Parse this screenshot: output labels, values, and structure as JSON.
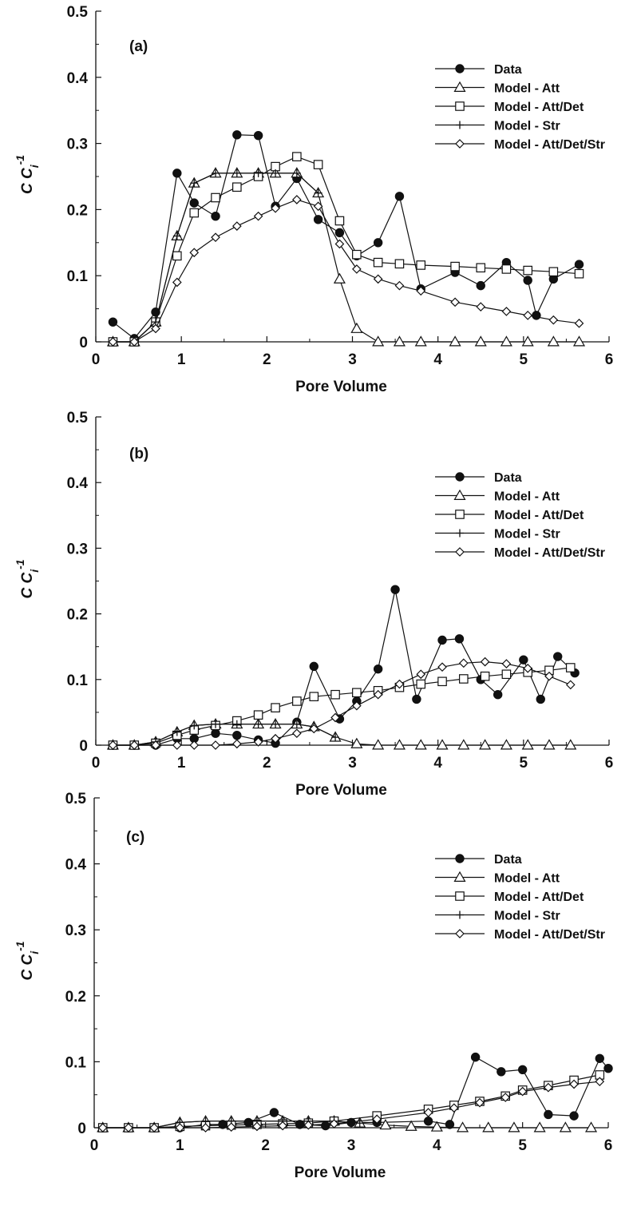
{
  "chart_data": [
    {
      "type": "line",
      "panel_label": "(a)",
      "xlabel": "Pore Volume",
      "ylabel": {
        "main": "C C",
        "sub": "i",
        "sup": "-1"
      },
      "xlim": [
        0,
        6
      ],
      "ylim": [
        0,
        0.5
      ],
      "xticks": [
        0,
        1,
        2,
        3,
        4,
        5,
        6
      ],
      "yticks": [
        0,
        0.1,
        0.2,
        0.3,
        0.4,
        0.5
      ],
      "ytick_labels": [
        "0",
        "0.1",
        "0.2",
        "0.3",
        "0.4",
        "0.5"
      ],
      "legend_position": "top-right",
      "series": [
        {
          "name": "Data",
          "marker": "filled-circle",
          "x": [
            0.2,
            0.45,
            0.7,
            0.95,
            1.15,
            1.4,
            1.65,
            1.9,
            2.1,
            2.35,
            2.6,
            2.85,
            3.05,
            3.3,
            3.55,
            3.8,
            4.2,
            4.5,
            4.8,
            5.05,
            5.15,
            5.35,
            5.65
          ],
          "y": [
            0.03,
            0.005,
            0.045,
            0.255,
            0.21,
            0.19,
            0.313,
            0.312,
            0.205,
            0.247,
            0.185,
            0.165,
            0.13,
            0.15,
            0.22,
            0.08,
            0.105,
            0.085,
            0.12,
            0.093,
            0.04,
            0.095,
            0.117
          ]
        },
        {
          "name": "Model - Att",
          "marker": "open-triangle",
          "x": [
            0.2,
            0.45,
            0.7,
            0.95,
            1.15,
            1.4,
            1.65,
            1.9,
            2.1,
            2.35,
            2.6,
            2.85,
            3.05,
            3.3,
            3.55,
            3.8,
            4.2,
            4.5,
            4.8,
            5.05,
            5.35,
            5.65
          ],
          "y": [
            0,
            0,
            0.03,
            0.16,
            0.24,
            0.255,
            0.255,
            0.255,
            0.255,
            0.255,
            0.225,
            0.095,
            0.02,
            0,
            0,
            0,
            0,
            0,
            0,
            0,
            0,
            0
          ]
        },
        {
          "name": "Model - Att/Det",
          "marker": "open-square",
          "x": [
            0.2,
            0.45,
            0.7,
            0.95,
            1.15,
            1.4,
            1.65,
            1.9,
            2.1,
            2.35,
            2.6,
            2.85,
            3.05,
            3.3,
            3.55,
            3.8,
            4.2,
            4.5,
            4.8,
            5.05,
            5.35,
            5.65
          ],
          "y": [
            0,
            0,
            0.03,
            0.13,
            0.195,
            0.218,
            0.234,
            0.25,
            0.265,
            0.28,
            0.268,
            0.183,
            0.132,
            0.12,
            0.118,
            0.116,
            0.114,
            0.112,
            0.11,
            0.108,
            0.106,
            0.103
          ]
        },
        {
          "name": "Model - Str",
          "marker": "plus",
          "x": [
            0.2,
            0.45,
            0.7,
            0.95,
            1.15,
            1.4,
            1.65,
            1.9,
            2.1,
            2.35,
            2.6
          ],
          "y": [
            0,
            0,
            0.03,
            0.16,
            0.24,
            0.255,
            0.255,
            0.255,
            0.255,
            0.255,
            0.225
          ]
        },
        {
          "name": "Model - Att/Det/Str",
          "marker": "open-diamond",
          "x": [
            0.2,
            0.45,
            0.7,
            0.95,
            1.15,
            1.4,
            1.65,
            1.9,
            2.1,
            2.35,
            2.6,
            2.85,
            3.05,
            3.3,
            3.55,
            3.8,
            4.2,
            4.5,
            4.8,
            5.05,
            5.35,
            5.65
          ],
          "y": [
            0,
            0,
            0.02,
            0.09,
            0.135,
            0.158,
            0.175,
            0.19,
            0.202,
            0.215,
            0.205,
            0.148,
            0.11,
            0.095,
            0.085,
            0.077,
            0.06,
            0.053,
            0.046,
            0.04,
            0.033,
            0.028
          ]
        }
      ]
    },
    {
      "type": "line",
      "panel_label": "(b)",
      "xlabel": "Pore Volume",
      "ylabel": {
        "main": "C C",
        "sub": "i",
        "sup": "-1"
      },
      "xlim": [
        0,
        6
      ],
      "ylim": [
        0,
        0.5
      ],
      "xticks": [
        0,
        1,
        2,
        3,
        4,
        5,
        6
      ],
      "yticks": [
        0,
        0.1,
        0.2,
        0.3,
        0.4,
        0.5
      ],
      "ytick_labels": [
        "0",
        "0.1",
        "0.2",
        "0.3",
        "0.4",
        "0.5"
      ],
      "legend_position": "top-right",
      "series": [
        {
          "name": "Data",
          "marker": "filled-circle",
          "x": [
            0.2,
            0.45,
            0.7,
            0.95,
            1.15,
            1.4,
            1.65,
            1.9,
            2.1,
            2.35,
            2.55,
            2.85,
            3.05,
            3.3,
            3.5,
            3.75,
            4.05,
            4.25,
            4.5,
            4.7,
            5.0,
            5.2,
            5.4,
            5.6
          ],
          "y": [
            0,
            0,
            0,
            0.01,
            0.01,
            0.018,
            0.015,
            0.008,
            0.003,
            0.035,
            0.12,
            0.04,
            0.067,
            0.116,
            0.237,
            0.07,
            0.16,
            0.162,
            0.1,
            0.077,
            0.13,
            0.07,
            0.135,
            0.11
          ]
        },
        {
          "name": "Model - Att",
          "marker": "open-triangle",
          "x": [
            0.2,
            0.45,
            0.7,
            0.95,
            1.15,
            1.4,
            1.65,
            1.9,
            2.1,
            2.35,
            2.55,
            2.8,
            3.05,
            3.3,
            3.55,
            3.8,
            4.05,
            4.3,
            4.55,
            4.8,
            5.05,
            5.3,
            5.55
          ],
          "y": [
            0,
            0,
            0.005,
            0.02,
            0.03,
            0.032,
            0.032,
            0.032,
            0.032,
            0.032,
            0.028,
            0.012,
            0.002,
            0,
            0,
            0,
            0,
            0,
            0,
            0,
            0,
            0,
            0
          ]
        },
        {
          "name": "Model - Att/Det",
          "marker": "open-square",
          "x": [
            0.2,
            0.45,
            0.7,
            0.95,
            1.15,
            1.4,
            1.65,
            1.9,
            2.1,
            2.35,
            2.55,
            2.8,
            3.05,
            3.3,
            3.55,
            3.8,
            4.05,
            4.3,
            4.55,
            4.8,
            5.05,
            5.3,
            5.55
          ],
          "y": [
            0,
            0,
            0.003,
            0.015,
            0.023,
            0.03,
            0.037,
            0.046,
            0.057,
            0.067,
            0.074,
            0.077,
            0.08,
            0.083,
            0.088,
            0.093,
            0.097,
            0.101,
            0.105,
            0.108,
            0.111,
            0.114,
            0.118
          ]
        },
        {
          "name": "Model - Str",
          "marker": "plus",
          "x": [
            0.2,
            0.45,
            0.7,
            0.95,
            1.15,
            1.4,
            1.65,
            1.9,
            2.1,
            2.35,
            2.55,
            2.8
          ],
          "y": [
            0,
            0,
            0.005,
            0.02,
            0.03,
            0.032,
            0.032,
            0.032,
            0.032,
            0.032,
            0.028,
            0.012
          ]
        },
        {
          "name": "Model - Att/Det/Str",
          "marker": "open-diamond",
          "x": [
            0.2,
            0.45,
            0.7,
            0.95,
            1.15,
            1.4,
            1.65,
            1.9,
            2.1,
            2.35,
            2.55,
            2.8,
            3.05,
            3.3,
            3.55,
            3.8,
            4.05,
            4.3,
            4.55,
            4.8,
            5.05,
            5.3,
            5.55
          ],
          "y": [
            0,
            0,
            0,
            0,
            0,
            0,
            0.002,
            0.005,
            0.01,
            0.018,
            0.025,
            0.042,
            0.06,
            0.077,
            0.093,
            0.108,
            0.119,
            0.125,
            0.127,
            0.124,
            0.117,
            0.105,
            0.092
          ]
        }
      ]
    },
    {
      "type": "line",
      "panel_label": "(c)",
      "xlabel": "Pore Volume",
      "ylabel": {
        "main": "C C",
        "sub": "i",
        "sup": "-1"
      },
      "xlim": [
        0,
        6
      ],
      "ylim": [
        0,
        0.5
      ],
      "xticks": [
        0,
        1,
        2,
        3,
        4,
        5,
        6
      ],
      "yticks": [
        0,
        0.1,
        0.2,
        0.3,
        0.4,
        0.5
      ],
      "ytick_labels": [
        "0",
        "0.1",
        "0.2",
        "0.3",
        "0.4",
        "0.5"
      ],
      "legend_position": "top-right",
      "series": [
        {
          "name": "Data",
          "marker": "filled-circle",
          "x": [
            0.1,
            0.4,
            0.7,
            1.0,
            1.3,
            1.5,
            1.8,
            2.1,
            2.4,
            2.7,
            3.0,
            3.3,
            3.9,
            4.15,
            4.45,
            4.75,
            5.0,
            5.3,
            5.6,
            5.9,
            6.0
          ],
          "y": [
            0,
            0,
            0,
            0,
            0.005,
            0.005,
            0.008,
            0.023,
            0.005,
            0.003,
            0.008,
            0.008,
            0.01,
            0.005,
            0.107,
            0.085,
            0.088,
            0.02,
            0.018,
            0.105,
            0.09
          ]
        },
        {
          "name": "Model - Att",
          "marker": "open-triangle",
          "x": [
            0.1,
            0.4,
            0.7,
            1.0,
            1.3,
            1.6,
            1.9,
            2.2,
            2.5,
            2.8,
            3.1,
            3.4,
            3.7,
            4.0,
            4.3,
            4.6,
            4.9,
            5.2,
            5.5,
            5.8
          ],
          "y": [
            0,
            0,
            0,
            0.008,
            0.01,
            0.01,
            0.01,
            0.01,
            0.01,
            0.01,
            0.007,
            0.004,
            0.002,
            0.001,
            0,
            0,
            0,
            0,
            0,
            0
          ]
        },
        {
          "name": "Model - Att/Det",
          "marker": "open-square",
          "x": [
            0.1,
            0.4,
            0.7,
            1.0,
            1.3,
            1.6,
            1.9,
            2.2,
            2.5,
            2.8,
            3.3,
            3.9,
            4.2,
            4.5,
            4.8,
            5.0,
            5.3,
            5.6,
            5.9
          ],
          "y": [
            0,
            0,
            0,
            0.002,
            0.003,
            0.004,
            0.005,
            0.006,
            0.007,
            0.01,
            0.018,
            0.028,
            0.034,
            0.04,
            0.048,
            0.057,
            0.064,
            0.072,
            0.08
          ]
        },
        {
          "name": "Model - Str",
          "marker": "plus",
          "x": [
            0.1,
            0.4,
            0.7,
            1.0,
            1.3,
            1.6,
            1.9,
            2.2,
            2.5,
            2.8,
            3.1
          ],
          "y": [
            0,
            0,
            0,
            0.008,
            0.01,
            0.01,
            0.01,
            0.01,
            0.01,
            0.01,
            0.007
          ]
        },
        {
          "name": "Model - Att/Det/Str",
          "marker": "open-diamond",
          "x": [
            0.1,
            0.4,
            0.7,
            1.0,
            1.3,
            1.6,
            1.9,
            2.2,
            2.5,
            2.8,
            3.3,
            3.9,
            4.2,
            4.5,
            4.8,
            5.0,
            5.3,
            5.6,
            5.9
          ],
          "y": [
            0,
            0,
            0,
            0,
            0,
            0.001,
            0.002,
            0.003,
            0.004,
            0.006,
            0.013,
            0.023,
            0.03,
            0.038,
            0.046,
            0.055,
            0.061,
            0.066,
            0.07
          ]
        }
      ]
    }
  ]
}
